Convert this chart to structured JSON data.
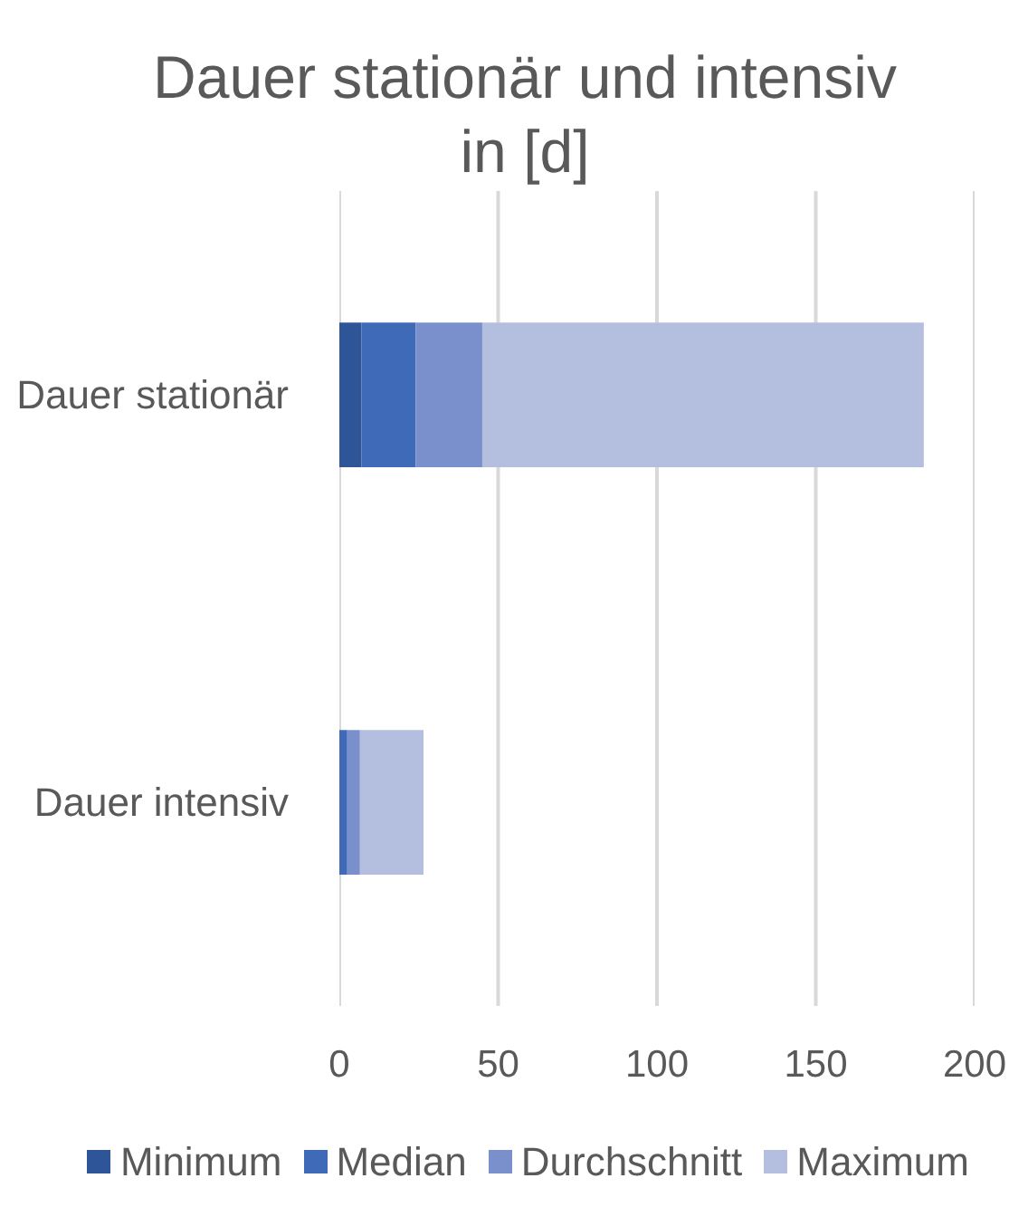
{
  "chart_data": {
    "type": "bar",
    "orientation": "horizontal",
    "stacked": true,
    "title": "Dauer stationär und intensiv in [d]",
    "categories": [
      "Dauer stationär",
      "Dauer intensiv"
    ],
    "series": [
      {
        "name": "Minimum",
        "color": "#2e5597",
        "values": [
          7,
          null
        ]
      },
      {
        "name": "Median",
        "color": "#3f6ab8",
        "values": [
          17,
          2.5
        ]
      },
      {
        "name": "Durchschnitt",
        "color": "#7a90cc",
        "values": [
          21,
          4
        ]
      },
      {
        "name": "Maximum",
        "color": "#b4bedf",
        "values": [
          139,
          20
        ]
      }
    ],
    "xlim": [
      0,
      200
    ],
    "xticks": [
      0,
      50,
      100,
      150,
      200
    ],
    "grid": "x",
    "legend": "bottom"
  }
}
